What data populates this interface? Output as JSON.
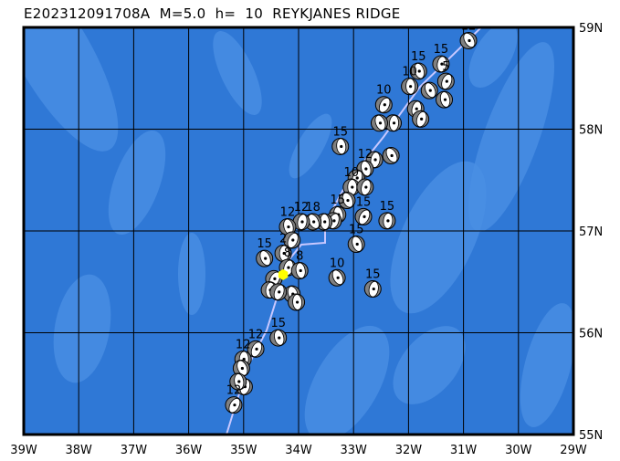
{
  "title": "E202312091708A  M=5.0  h=  10  REYKJANES RIDGE",
  "map": {
    "lon_range": [
      -39,
      -29
    ],
    "lat_range": [
      55,
      59
    ],
    "lon_labels": [
      "39W",
      "38W",
      "37W",
      "36W",
      "35W",
      "34W",
      "33W",
      "32W",
      "31W",
      "30W",
      "29W"
    ],
    "lat_labels": [
      "59N",
      "58N",
      "57N",
      "56N",
      "55N"
    ],
    "colors": {
      "ocean": "#2f78d6",
      "shallow": "#4a8fe4",
      "grid": "#000000",
      "ridge": "#c8c8ff",
      "main_event": "#ffff00",
      "mechanism": "#808080"
    }
  },
  "main_event": {
    "lon": -34.28,
    "lat": 56.57,
    "depth": "10",
    "magnitude": "5.0"
  },
  "events": [
    {
      "lon": -30.91,
      "lat": 58.87,
      "depth": "12"
    },
    {
      "lon": -31.41,
      "lat": 58.64,
      "depth": "15"
    },
    {
      "lon": -31.82,
      "lat": 58.57,
      "depth": "15"
    },
    {
      "lon": -31.32,
      "lat": 58.47,
      "depth": "5"
    },
    {
      "lon": -31.98,
      "lat": 58.42,
      "depth": "10"
    },
    {
      "lon": -31.62,
      "lat": 58.38,
      "depth": ""
    },
    {
      "lon": -31.87,
      "lat": 58.2,
      "depth": ""
    },
    {
      "lon": -31.35,
      "lat": 58.29,
      "depth": ""
    },
    {
      "lon": -32.45,
      "lat": 58.24,
      "depth": "10"
    },
    {
      "lon": -32.28,
      "lat": 58.06,
      "depth": ""
    },
    {
      "lon": -32.53,
      "lat": 58.06,
      "depth": ""
    },
    {
      "lon": -31.78,
      "lat": 58.1,
      "depth": ""
    },
    {
      "lon": -33.24,
      "lat": 57.83,
      "depth": "15"
    },
    {
      "lon": -32.32,
      "lat": 57.74,
      "depth": ""
    },
    {
      "lon": -32.62,
      "lat": 57.7,
      "depth": ""
    },
    {
      "lon": -32.79,
      "lat": 57.61,
      "depth": "12"
    },
    {
      "lon": -32.95,
      "lat": 57.52,
      "depth": ""
    },
    {
      "lon": -33.04,
      "lat": 57.43,
      "depth": "10"
    },
    {
      "lon": -33.12,
      "lat": 57.3,
      "depth": ""
    },
    {
      "lon": -32.79,
      "lat": 57.43,
      "depth": ""
    },
    {
      "lon": -33.29,
      "lat": 57.16,
      "depth": "15"
    },
    {
      "lon": -32.82,
      "lat": 57.14,
      "depth": "15"
    },
    {
      "lon": -32.39,
      "lat": 57.1,
      "depth": "15"
    },
    {
      "lon": -32.95,
      "lat": 56.87,
      "depth": "15"
    },
    {
      "lon": -33.37,
      "lat": 57.1,
      "depth": ""
    },
    {
      "lon": -33.54,
      "lat": 57.09,
      "depth": ""
    },
    {
      "lon": -33.74,
      "lat": 57.09,
      "depth": "18"
    },
    {
      "lon": -33.95,
      "lat": 57.09,
      "depth": "12"
    },
    {
      "lon": -34.2,
      "lat": 57.04,
      "depth": "12"
    },
    {
      "lon": -34.12,
      "lat": 56.91,
      "depth": ""
    },
    {
      "lon": -34.28,
      "lat": 56.78,
      "depth": "2"
    },
    {
      "lon": -34.62,
      "lat": 56.73,
      "depth": "15"
    },
    {
      "lon": -34.2,
      "lat": 56.64,
      "depth": "8"
    },
    {
      "lon": -33.98,
      "lat": 56.61,
      "depth": "8"
    },
    {
      "lon": -34.45,
      "lat": 56.53,
      "depth": ""
    },
    {
      "lon": -34.53,
      "lat": 56.42,
      "depth": ""
    },
    {
      "lon": -34.12,
      "lat": 56.38,
      "depth": ""
    },
    {
      "lon": -34.37,
      "lat": 56.4,
      "depth": ""
    },
    {
      "lon": -34.04,
      "lat": 56.3,
      "depth": ""
    },
    {
      "lon": -33.3,
      "lat": 56.54,
      "depth": "10"
    },
    {
      "lon": -32.65,
      "lat": 56.43,
      "depth": "15"
    },
    {
      "lon": -34.37,
      "lat": 55.95,
      "depth": "15"
    },
    {
      "lon": -34.78,
      "lat": 55.84,
      "depth": "12"
    },
    {
      "lon": -35.01,
      "lat": 55.74,
      "depth": "12"
    },
    {
      "lon": -35.04,
      "lat": 55.65,
      "depth": ""
    },
    {
      "lon": -34.99,
      "lat": 55.47,
      "depth": ""
    },
    {
      "lon": -35.1,
      "lat": 55.52,
      "depth": ""
    },
    {
      "lon": -35.18,
      "lat": 55.29,
      "depth": "12"
    }
  ]
}
